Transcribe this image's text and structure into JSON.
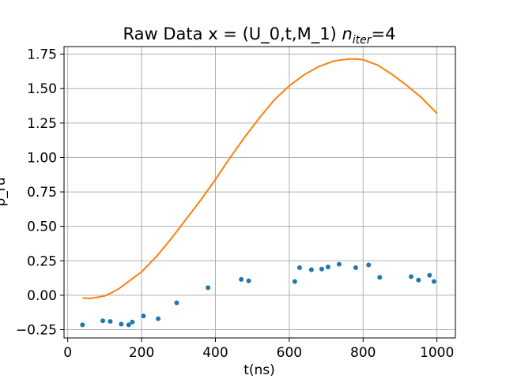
{
  "chart_data": {
    "type": "scatter",
    "title": {
      "main": "Raw Data x = (U_0,t,M_1) ",
      "math_var": "n",
      "math_sub": "iter",
      "suffix": "=4"
    },
    "xlabel": "t(ns)",
    "ylabel": "p_ru",
    "xlim": [
      -10,
      1050
    ],
    "ylim": [
      -0.31,
      1.805
    ],
    "xticks": [
      0,
      200,
      400,
      600,
      800,
      1000
    ],
    "yticks": [
      -0.25,
      0.0,
      0.25,
      0.5,
      0.75,
      1.0,
      1.25,
      1.5,
      1.75
    ],
    "xtick_labels": [
      "0",
      "200",
      "400",
      "600",
      "800",
      "1000"
    ],
    "ytick_labels": [
      "−0.25",
      "0.00",
      "0.25",
      "0.50",
      "0.75",
      "1.00",
      "1.25",
      "1.50",
      "1.75"
    ],
    "grid": true,
    "colors": {
      "points": "#1f77b4",
      "fit": "#ff7f0e",
      "grid": "#b0b0b0",
      "axes": "#000000"
    },
    "series": [
      {
        "kind": "points",
        "x": [
          40,
          95,
          115,
          145,
          165,
          175,
          205,
          245,
          295,
          380,
          470,
          490,
          615,
          628,
          660,
          688,
          705,
          735,
          780,
          815,
          845,
          930,
          950,
          980,
          992
        ],
        "y": [
          -0.215,
          -0.185,
          -0.19,
          -0.21,
          -0.215,
          -0.195,
          -0.15,
          -0.17,
          -0.055,
          0.055,
          0.115,
          0.105,
          0.1,
          0.2,
          0.185,
          0.19,
          0.205,
          0.225,
          0.2,
          0.22,
          0.13,
          0.135,
          0.11,
          0.145,
          0.1
        ]
      },
      {
        "kind": "fit",
        "x": [
          40,
          60,
          80,
          100,
          120,
          140,
          160,
          180,
          200,
          240,
          280,
          320,
          360,
          400,
          440,
          480,
          520,
          560,
          600,
          640,
          680,
          720,
          760,
          780,
          800,
          840,
          880,
          920,
          960,
          1000
        ],
        "y": [
          -0.02,
          -0.023,
          -0.015,
          -0.005,
          0.02,
          0.05,
          0.09,
          0.13,
          0.17,
          0.28,
          0.41,
          0.55,
          0.69,
          0.84,
          1.0,
          1.15,
          1.29,
          1.42,
          1.52,
          1.6,
          1.66,
          1.7,
          1.715,
          1.715,
          1.71,
          1.67,
          1.6,
          1.52,
          1.43,
          1.32
        ]
      }
    ]
  }
}
